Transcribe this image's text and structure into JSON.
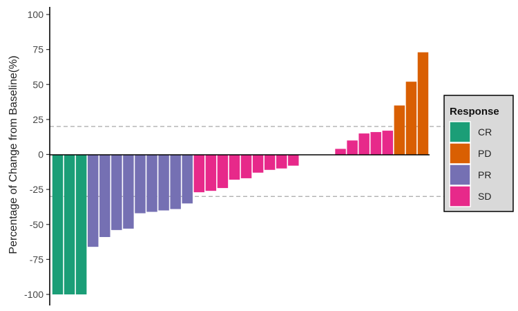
{
  "chart_data": {
    "type": "bar",
    "title": "",
    "xlabel": "",
    "ylabel": "Percentage of Change from Baseline(%)",
    "ylim": [
      -100,
      100
    ],
    "yticks": [
      -100,
      -75,
      -50,
      -25,
      0,
      25,
      50,
      75,
      100
    ],
    "reference_lines": [
      20,
      -30
    ],
    "grid": false,
    "legend_position": "right",
    "legend_title": "Response",
    "colors": {
      "CR": "#1b9e77",
      "PD": "#d95f02",
      "PR": "#7570b3",
      "SD": "#e7298a"
    },
    "legend": [
      "CR",
      "PD",
      "PR",
      "SD"
    ],
    "bars": [
      {
        "response": "CR",
        "value": -100
      },
      {
        "response": "CR",
        "value": -100
      },
      {
        "response": "CR",
        "value": -100
      },
      {
        "response": "PR",
        "value": -66
      },
      {
        "response": "PR",
        "value": -59
      },
      {
        "response": "PR",
        "value": -54
      },
      {
        "response": "PR",
        "value": -53
      },
      {
        "response": "PR",
        "value": -42
      },
      {
        "response": "PR",
        "value": -41
      },
      {
        "response": "PR",
        "value": -40
      },
      {
        "response": "PR",
        "value": -39
      },
      {
        "response": "PR",
        "value": -35
      },
      {
        "response": "SD",
        "value": -27
      },
      {
        "response": "SD",
        "value": -26
      },
      {
        "response": "SD",
        "value": -24
      },
      {
        "response": "SD",
        "value": -18
      },
      {
        "response": "SD",
        "value": -17
      },
      {
        "response": "SD",
        "value": -13
      },
      {
        "response": "SD",
        "value": -11
      },
      {
        "response": "SD",
        "value": -10
      },
      {
        "response": "SD",
        "value": -8
      },
      {
        "response": "SD",
        "value": 0
      },
      {
        "response": "SD",
        "value": 0
      },
      {
        "response": "SD",
        "value": 0
      },
      {
        "response": "SD",
        "value": 4
      },
      {
        "response": "SD",
        "value": 10
      },
      {
        "response": "SD",
        "value": 15
      },
      {
        "response": "SD",
        "value": 16
      },
      {
        "response": "SD",
        "value": 17
      },
      {
        "response": "PD",
        "value": 35
      },
      {
        "response": "PD",
        "value": 52
      },
      {
        "response": "PD",
        "value": 73
      }
    ]
  }
}
